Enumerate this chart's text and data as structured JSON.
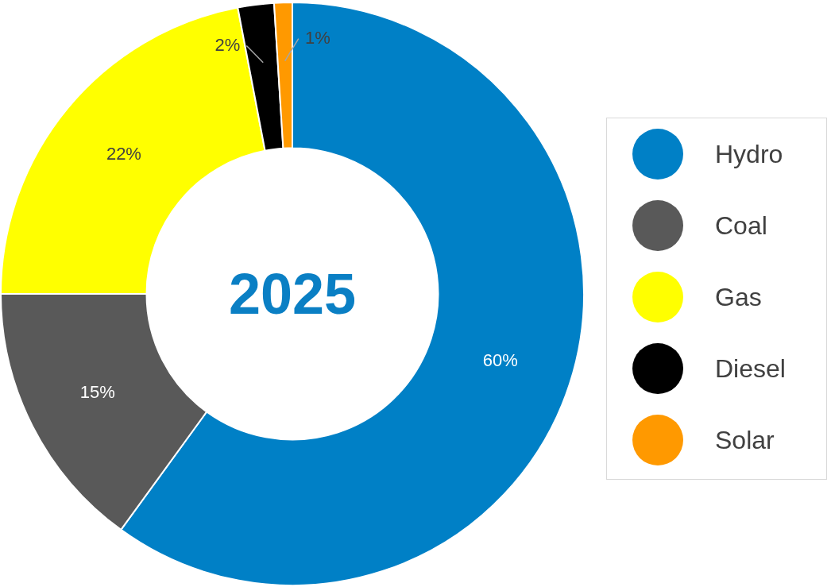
{
  "chart_data": {
    "type": "donut",
    "title": "2025",
    "categories": [
      "Hydro",
      "Coal",
      "Gas",
      "Diesel",
      "Solar"
    ],
    "values": [
      60,
      15,
      22,
      2,
      1
    ],
    "colors": [
      "#0080c6",
      "#595959",
      "#ffff00",
      "#000000",
      "#ff9900"
    ],
    "value_labels": [
      "60%",
      "15%",
      "22%",
      "2%",
      "1%"
    ],
    "legend": "right"
  }
}
